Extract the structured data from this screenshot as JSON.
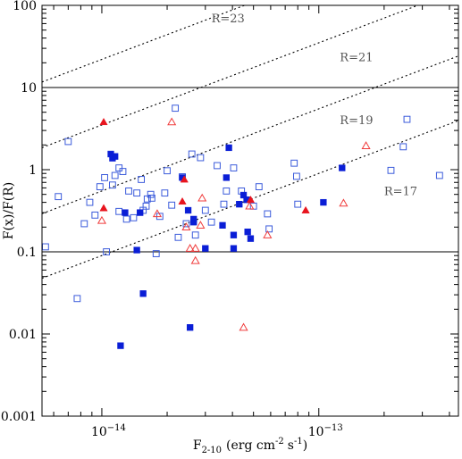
{
  "chart_data": {
    "type": "scatter",
    "xlabel_main": "F",
    "xlabel_sub": "2-10",
    "xlabel_unit": "(erg cm",
    "xlabel_exp": "-2",
    "xlabel_tail": "s",
    "xlabel_exp2": "-1",
    "xlabel_close": ")",
    "ylabel": "F(x)/F(R)",
    "x_scale": "log",
    "y_scale": "log",
    "xlim": [
      5.3e-15,
      4.4e-13
    ],
    "ylim": [
      0.001,
      100
    ],
    "x_tick_labels": [
      {
        "value": 1e-14,
        "base": "10",
        "exp": "−14"
      },
      {
        "value": 1e-13,
        "base": "10",
        "exp": "−13"
      }
    ],
    "y_tick_labels": [
      {
        "value": 0.001,
        "label": "0.001"
      },
      {
        "value": 0.01,
        "label": "0.01"
      },
      {
        "value": 0.1,
        "label": "0.1"
      },
      {
        "value": 1,
        "label": "1"
      },
      {
        "value": 10,
        "label": "10"
      },
      {
        "value": 100,
        "label": "100"
      }
    ],
    "reference_hlines": [
      0.1,
      10
    ],
    "constant_R_lines": [
      {
        "label": "R=23",
        "a": 2200000000000000.0,
        "label_x": 3.2e-14,
        "label_y": 62
      },
      {
        "label": "R=21",
        "a": 350000000000000.0,
        "label_x": 1.25e-13,
        "label_y": 21
      },
      {
        "label": "R=19",
        "a": 55000000000000.0,
        "label_x": 1.25e-13,
        "label_y": 3.6
      },
      {
        "label": "R=17",
        "a": 9000000000000.0,
        "label_x": 2e-13,
        "label_y": 0.49
      }
    ],
    "series": [
      {
        "marker": "open-square",
        "color": "#3b5bdb",
        "points": [
          [
            5.5e-15,
            0.115
          ],
          [
            6.3e-15,
            0.47
          ],
          [
            7e-15,
            2.2
          ],
          [
            7.7e-15,
            0.027
          ],
          [
            8.3e-15,
            0.22
          ],
          [
            8.8e-15,
            0.4
          ],
          [
            9.3e-15,
            0.28
          ],
          [
            9.8e-15,
            0.62
          ],
          [
            1.03e-14,
            0.8
          ],
          [
            1.05e-14,
            0.1
          ],
          [
            1.12e-14,
            0.65
          ],
          [
            1.15e-14,
            0.85
          ],
          [
            1.2e-14,
            1.05
          ],
          [
            1.2e-14,
            0.31
          ],
          [
            1.25e-14,
            0.95
          ],
          [
            1.3e-14,
            0.25
          ],
          [
            1.33e-14,
            0.55
          ],
          [
            1.4e-14,
            0.26
          ],
          [
            1.45e-14,
            0.52
          ],
          [
            1.52e-14,
            0.76
          ],
          [
            1.55e-14,
            0.32
          ],
          [
            1.6e-14,
            0.36
          ],
          [
            1.62e-14,
            0.44
          ],
          [
            1.68e-14,
            0.5
          ],
          [
            1.7e-14,
            0.45
          ],
          [
            1.78e-14,
            0.095
          ],
          [
            1.85e-14,
            0.27
          ],
          [
            1.95e-14,
            0.52
          ],
          [
            2e-14,
            0.97
          ],
          [
            2.1e-14,
            0.37
          ],
          [
            2.18e-14,
            5.6
          ],
          [
            2.25e-14,
            0.15
          ],
          [
            2.35e-14,
            0.82
          ],
          [
            2.45e-14,
            0.22
          ],
          [
            2.6e-14,
            1.55
          ],
          [
            2.7e-14,
            0.16
          ],
          [
            2.85e-14,
            1.4
          ],
          [
            3e-14,
            0.32
          ],
          [
            3.2e-14,
            0.23
          ],
          [
            3.4e-14,
            1.12
          ],
          [
            3.65e-14,
            0.38
          ],
          [
            3.75e-14,
            0.55
          ],
          [
            4.05e-14,
            1.05
          ],
          [
            4.4e-14,
            0.55
          ],
          [
            5e-14,
            0.36
          ],
          [
            5.3e-14,
            0.62
          ],
          [
            5.8e-14,
            0.29
          ],
          [
            5.9e-14,
            0.19
          ],
          [
            7.7e-14,
            1.2
          ],
          [
            7.9e-14,
            0.83
          ],
          [
            8e-14,
            0.38
          ],
          [
            2.15e-13,
            0.98
          ],
          [
            2.45e-13,
            1.9
          ],
          [
            2.55e-13,
            4.1
          ],
          [
            3.6e-13,
            0.85
          ]
        ]
      },
      {
        "marker": "filled-square",
        "color": "#0a1ed6",
        "points": [
          [
            1.1e-14,
            1.55
          ],
          [
            1.12e-14,
            1.38
          ],
          [
            1.15e-14,
            1.45
          ],
          [
            1.22e-14,
            0.0072
          ],
          [
            1.28e-14,
            0.3
          ],
          [
            1.45e-14,
            0.105
          ],
          [
            1.5e-14,
            0.3
          ],
          [
            1.55e-14,
            0.031
          ],
          [
            2.35e-14,
            0.8
          ],
          [
            2.5e-14,
            0.32
          ],
          [
            2.55e-14,
            0.012
          ],
          [
            2.65e-14,
            0.25
          ],
          [
            2.65e-14,
            0.23
          ],
          [
            3e-14,
            0.11
          ],
          [
            3.6e-14,
            0.21
          ],
          [
            3.75e-14,
            0.8
          ],
          [
            3.85e-14,
            1.85
          ],
          [
            4.05e-14,
            0.16
          ],
          [
            4.05e-14,
            0.11
          ],
          [
            4.3e-14,
            0.38
          ],
          [
            4.5e-14,
            0.49
          ],
          [
            4.65e-14,
            0.43
          ],
          [
            4.7e-14,
            0.175
          ],
          [
            4.85e-14,
            0.145
          ],
          [
            1.05e-13,
            0.4
          ],
          [
            1.28e-13,
            1.05
          ]
        ]
      },
      {
        "marker": "open-triangle",
        "color": "#f03c3c",
        "points": [
          [
            1e-14,
            0.24
          ],
          [
            1.8e-14,
            0.29
          ],
          [
            2.1e-14,
            3.8
          ],
          [
            2.45e-14,
            0.2
          ],
          [
            2.55e-14,
            0.11
          ],
          [
            2.7e-14,
            0.11
          ],
          [
            2.7e-14,
            0.078
          ],
          [
            2.85e-14,
            0.21
          ],
          [
            2.9e-14,
            0.45
          ],
          [
            4.5e-14,
            0.012
          ],
          [
            4.8e-14,
            0.36
          ],
          [
            5.8e-14,
            0.16
          ],
          [
            1.3e-13,
            0.39
          ],
          [
            1.65e-13,
            1.95
          ]
        ]
      },
      {
        "marker": "filled-triangle",
        "color": "#e8141e",
        "points": [
          [
            1.02e-14,
            3.8
          ],
          [
            1.02e-14,
            0.34
          ],
          [
            2.35e-14,
            0.41
          ],
          [
            2.4e-14,
            0.76
          ],
          [
            4.85e-14,
            0.43
          ],
          [
            8.7e-14,
            0.32
          ]
        ]
      }
    ]
  }
}
